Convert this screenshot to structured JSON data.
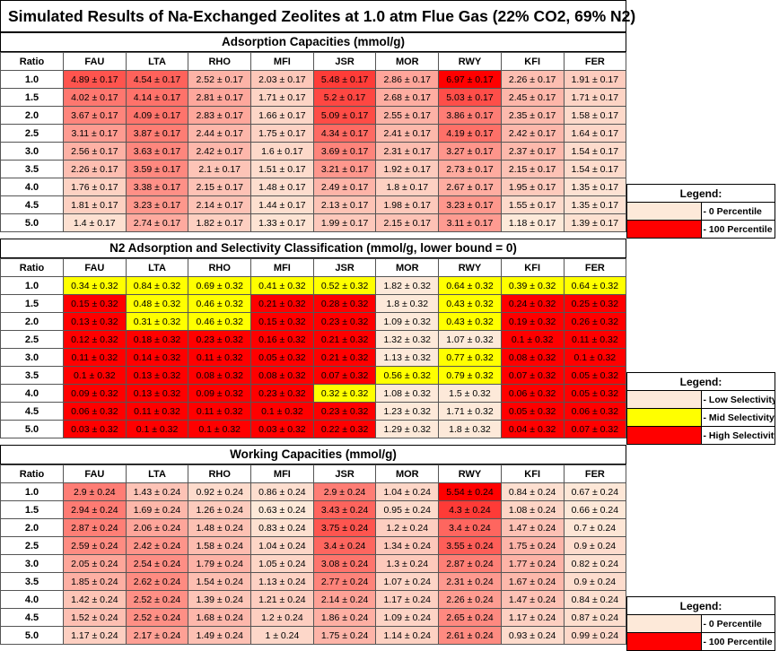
{
  "title": "Simulated Results of Na-Exchanged Zeolites at 1.0 atm Flue Gas (22% CO2, 69% N2)",
  "columns": [
    "Ratio",
    "FAU",
    "LTA",
    "RHO",
    "MFI",
    "JSR",
    "MOR",
    "RWY",
    "KFI",
    "FER"
  ],
  "ratios": [
    "1.0",
    "1.5",
    "2.0",
    "2.5",
    "3.0",
    "3.5",
    "4.0",
    "4.5",
    "5.0"
  ],
  "colors": {
    "yellow": "#ffff00",
    "light": "#fde9d9",
    "red": "#ff0000"
  },
  "sections": [
    {
      "title": "Adsorption Capacities (mmol/g)",
      "type": "gradient",
      "rows": [
        [
          "4.89 ± 0.17",
          "4.54 ± 0.17",
          "2.52 ± 0.17",
          "2.03 ± 0.17",
          "5.48 ± 0.17",
          "2.86 ± 0.17",
          "6.97 ± 0.17",
          "2.26 ± 0.17",
          "1.91 ± 0.17"
        ],
        [
          "4.02 ± 0.17",
          "4.14 ± 0.17",
          "2.81 ± 0.17",
          "1.71 ± 0.17",
          "5.2 ± 0.17",
          "2.68 ± 0.17",
          "5.03 ± 0.17",
          "2.45 ± 0.17",
          "1.71 ± 0.17"
        ],
        [
          "3.67 ± 0.17",
          "4.09 ± 0.17",
          "2.83 ± 0.17",
          "1.66 ± 0.17",
          "5.09 ± 0.17",
          "2.55 ± 0.17",
          "3.86 ± 0.17",
          "2.35 ± 0.17",
          "1.58 ± 0.17"
        ],
        [
          "3.11 ± 0.17",
          "3.87 ± 0.17",
          "2.44 ± 0.17",
          "1.75 ± 0.17",
          "4.34 ± 0.17",
          "2.41 ± 0.17",
          "4.19 ± 0.17",
          "2.42 ± 0.17",
          "1.64 ± 0.17"
        ],
        [
          "2.56 ± 0.17",
          "3.63 ± 0.17",
          "2.42 ± 0.17",
          "1.6 ± 0.17",
          "3.69 ± 0.17",
          "2.31 ± 0.17",
          "3.27 ± 0.17",
          "2.37 ± 0.17",
          "1.54 ± 0.17"
        ],
        [
          "2.26 ± 0.17",
          "3.59 ± 0.17",
          "2.1 ± 0.17",
          "1.51 ± 0.17",
          "3.21 ± 0.17",
          "1.92 ± 0.17",
          "2.73 ± 0.17",
          "2.15 ± 0.17",
          "1.54 ± 0.17"
        ],
        [
          "1.76 ± 0.17",
          "3.38 ± 0.17",
          "2.15 ± 0.17",
          "1.48 ± 0.17",
          "2.49 ± 0.17",
          "1.8 ± 0.17",
          "2.67 ± 0.17",
          "1.95 ± 0.17",
          "1.35 ± 0.17"
        ],
        [
          "1.81 ± 0.17",
          "3.23 ± 0.17",
          "2.14 ± 0.17",
          "1.44 ± 0.17",
          "2.13 ± 0.17",
          "1.98 ± 0.17",
          "3.23 ± 0.17",
          "1.55 ± 0.17",
          "1.35 ± 0.17"
        ],
        [
          "1.4 ± 0.17",
          "2.74 ± 0.17",
          "1.82 ± 0.17",
          "1.33 ± 0.17",
          "1.99 ± 0.17",
          "2.15 ± 0.17",
          "3.11 ± 0.17",
          "1.18 ± 0.17",
          "1.39 ± 0.17"
        ]
      ],
      "legend": {
        "title": "Legend:",
        "items": [
          {
            "label": "- 0 Percentile",
            "color": "#fde9d9"
          },
          {
            "label": "- 100 Percentile",
            "color": "#ff0000"
          }
        ]
      }
    },
    {
      "title": "N2 Adsorption and Selectivity Classification (mmol/g, lower bound = 0)",
      "type": "category",
      "rows": [
        [
          "0.34 ± 0.32",
          "0.84 ± 0.32",
          "0.69 ± 0.32",
          "0.41 ± 0.32",
          "0.52 ± 0.32",
          "1.82 ± 0.32",
          "0.64 ± 0.32",
          "0.39 ± 0.32",
          "0.64 ± 0.32"
        ],
        [
          "0.15 ± 0.32",
          "0.48 ± 0.32",
          "0.46 ± 0.32",
          "0.21 ± 0.32",
          "0.28 ± 0.32",
          "1.8 ± 0.32",
          "0.43 ± 0.32",
          "0.24 ± 0.32",
          "0.25 ± 0.32"
        ],
        [
          "0.13 ± 0.32",
          "0.31 ± 0.32",
          "0.46 ± 0.32",
          "0.15 ± 0.32",
          "0.23 ± 0.32",
          "1.09 ± 0.32",
          "0.43 ± 0.32",
          "0.19 ± 0.32",
          "0.26 ± 0.32"
        ],
        [
          "0.12 ± 0.32",
          "0.18 ± 0.32",
          "0.23 ± 0.32",
          "0.16 ± 0.32",
          "0.21 ± 0.32",
          "1.32 ± 0.32",
          "1.07 ± 0.32",
          "0.1 ± 0.32",
          "0.11 ± 0.32"
        ],
        [
          "0.11 ± 0.32",
          "0.14 ± 0.32",
          "0.11 ± 0.32",
          "0.05 ± 0.32",
          "0.21 ± 0.32",
          "1.13 ± 0.32",
          "0.77 ± 0.32",
          "0.08 ± 0.32",
          "0.1 ± 0.32"
        ],
        [
          "0.1 ± 0.32",
          "0.13 ± 0.32",
          "0.08 ± 0.32",
          "0.08 ± 0.32",
          "0.07 ± 0.32",
          "0.56 ± 0.32",
          "0.79 ± 0.32",
          "0.07 ± 0.32",
          "0.05 ± 0.32"
        ],
        [
          "0.09 ± 0.32",
          "0.13 ± 0.32",
          "0.09 ± 0.32",
          "0.23 ± 0.32",
          "0.32 ± 0.32",
          "1.08 ± 0.32",
          "1.5 ± 0.32",
          "0.06 ± 0.32",
          "0.05 ± 0.32"
        ],
        [
          "0.06 ± 0.32",
          "0.11 ± 0.32",
          "0.11 ± 0.32",
          "0.1 ± 0.32",
          "0.23 ± 0.32",
          "1.23 ± 0.32",
          "1.71 ± 0.32",
          "0.05 ± 0.32",
          "0.06 ± 0.32"
        ],
        [
          "0.03 ± 0.32",
          "0.1 ± 0.32",
          "0.1 ± 0.32",
          "0.03 ± 0.32",
          "0.22 ± 0.32",
          "1.29 ± 0.32",
          "1.8 ± 0.32",
          "0.04 ± 0.32",
          "0.07 ± 0.32"
        ]
      ],
      "classes": [
        [
          "Y",
          "Y",
          "Y",
          "Y",
          "Y",
          "L",
          "Y",
          "Y",
          "Y"
        ],
        [
          "R",
          "Y",
          "Y",
          "R",
          "R",
          "L",
          "Y",
          "R",
          "R"
        ],
        [
          "R",
          "Y",
          "Y",
          "R",
          "R",
          "L",
          "Y",
          "R",
          "R"
        ],
        [
          "R",
          "R",
          "R",
          "R",
          "R",
          "L",
          "L",
          "R",
          "R"
        ],
        [
          "R",
          "R",
          "R",
          "R",
          "R",
          "L",
          "Y",
          "R",
          "R"
        ],
        [
          "R",
          "R",
          "R",
          "R",
          "R",
          "Y",
          "Y",
          "R",
          "R"
        ],
        [
          "R",
          "R",
          "R",
          "R",
          "Y",
          "L",
          "L",
          "R",
          "R"
        ],
        [
          "R",
          "R",
          "R",
          "R",
          "R",
          "L",
          "L",
          "R",
          "R"
        ],
        [
          "R",
          "R",
          "R",
          "R",
          "R",
          "L",
          "L",
          "R",
          "R"
        ]
      ],
      "legend": {
        "title": "Legend:",
        "items": [
          {
            "label": "- Low Selectivity",
            "color": "#fde9d9"
          },
          {
            "label": "- Mid Selectivity",
            "color": "#ffff00"
          },
          {
            "label": "- High Selectivity",
            "color": "#ff0000"
          }
        ]
      }
    },
    {
      "title": "Working Capacities (mmol/g)",
      "type": "gradient",
      "rows": [
        [
          "2.9 ± 0.24",
          "1.43 ± 0.24",
          "0.92 ± 0.24",
          "0.86 ± 0.24",
          "2.9 ± 0.24",
          "1.04 ± 0.24",
          "5.54 ± 0.24",
          "0.84 ± 0.24",
          "0.67 ± 0.24"
        ],
        [
          "2.94 ± 0.24",
          "1.69 ± 0.24",
          "1.26 ± 0.24",
          "0.63 ± 0.24",
          "3.43 ± 0.24",
          "0.95 ± 0.24",
          "4.3 ± 0.24",
          "1.08 ± 0.24",
          "0.66 ± 0.24"
        ],
        [
          "2.87 ± 0.24",
          "2.06 ± 0.24",
          "1.48 ± 0.24",
          "0.83 ± 0.24",
          "3.75 ± 0.24",
          "1.2 ± 0.24",
          "3.4 ± 0.24",
          "1.47 ± 0.24",
          "0.7 ± 0.24"
        ],
        [
          "2.59 ± 0.24",
          "2.42 ± 0.24",
          "1.58 ± 0.24",
          "1.04 ± 0.24",
          "3.4 ± 0.24",
          "1.34 ± 0.24",
          "3.55 ± 0.24",
          "1.75 ± 0.24",
          "0.9 ± 0.24"
        ],
        [
          "2.05 ± 0.24",
          "2.54 ± 0.24",
          "1.79 ± 0.24",
          "1.05 ± 0.24",
          "3.08 ± 0.24",
          "1.3 ± 0.24",
          "2.87 ± 0.24",
          "1.77 ± 0.24",
          "0.82 ± 0.24"
        ],
        [
          "1.85 ± 0.24",
          "2.62 ± 0.24",
          "1.54 ± 0.24",
          "1.13 ± 0.24",
          "2.77 ± 0.24",
          "1.07 ± 0.24",
          "2.31 ± 0.24",
          "1.67 ± 0.24",
          "0.9 ± 0.24"
        ],
        [
          "1.42 ± 0.24",
          "2.52 ± 0.24",
          "1.39 ± 0.24",
          "1.21 ± 0.24",
          "2.14 ± 0.24",
          "1.17 ± 0.24",
          "2.26 ± 0.24",
          "1.47 ± 0.24",
          "0.84 ± 0.24"
        ],
        [
          "1.52 ± 0.24",
          "2.52 ± 0.24",
          "1.68 ± 0.24",
          "1.2 ± 0.24",
          "1.86 ± 0.24",
          "1.09 ± 0.24",
          "2.65 ± 0.24",
          "1.17 ± 0.24",
          "0.87 ± 0.24"
        ],
        [
          "1.17 ± 0.24",
          "2.17 ± 0.24",
          "1.49 ± 0.24",
          "1 ± 0.24",
          "1.75 ± 0.24",
          "1.14 ± 0.24",
          "2.61 ± 0.24",
          "0.93 ± 0.24",
          "0.99 ± 0.24"
        ]
      ],
      "legend": {
        "title": "Legend:",
        "items": [
          {
            "label": "- 0 Percentile",
            "color": "#fde9d9"
          },
          {
            "label": "- 100 Percentile",
            "color": "#ff0000"
          }
        ]
      }
    }
  ]
}
